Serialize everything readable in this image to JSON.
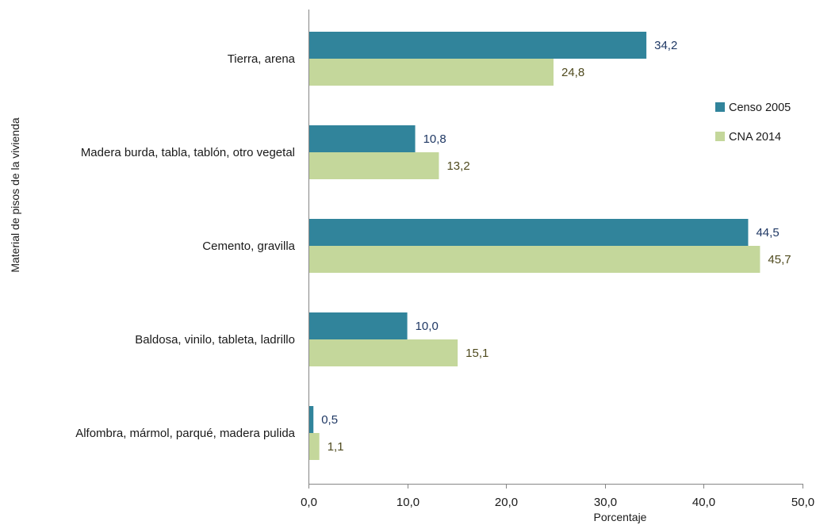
{
  "chart_data": {
    "type": "bar",
    "orientation": "horizontal",
    "categories": [
      "Tierra, arena",
      "Madera burda, tabla, tablón, otro vegetal",
      "Cemento, gravilla",
      "Baldosa, vinilo, tableta, ladrillo",
      "Alfombra, mármol, parqué, madera pulida"
    ],
    "series": [
      {
        "name": "Censo 2005",
        "color": "#31849b",
        "label_color": "#1f3864",
        "values": [
          34.2,
          10.8,
          44.5,
          10.0,
          0.5
        ],
        "labels": [
          "34,2",
          "10,8",
          "44,5",
          "10,0",
          "0,5"
        ]
      },
      {
        "name": "CNA 2014",
        "color": "#c4d79b",
        "label_color": "#4f4a1e",
        "values": [
          24.8,
          13.2,
          45.7,
          15.1,
          1.1
        ],
        "labels": [
          "24,8",
          "13,2",
          "45,7",
          "15,1",
          "1,1"
        ]
      }
    ],
    "xlabel": "Porcentaje",
    "ylabel": "Material de pisos de la vivienda",
    "xlim": [
      0,
      50
    ],
    "xticks": [
      0,
      10,
      20,
      30,
      40,
      50
    ],
    "xtick_labels": [
      "0,0",
      "10,0",
      "20,0",
      "30,0",
      "40,0",
      "50,0"
    ],
    "grid": false,
    "legend_position": "right"
  }
}
